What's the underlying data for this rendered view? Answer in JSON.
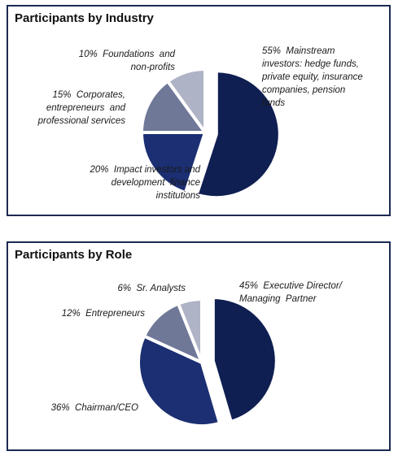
{
  "chart_data": [
    {
      "type": "pie",
      "title": "Participants by Industry",
      "categories": [
        "Mainstream investors: hedge funds, private equity, insurance companies, pension funds",
        "Impact investors and development finance institutions",
        "Corporates, entrepreneurs and professional services",
        "Foundations and non-profits"
      ],
      "values": [
        55,
        20,
        15,
        10
      ],
      "labels": [
        [
          "55%  Mainstream",
          "investors: hedge funds,",
          "private equity, insurance",
          "companies, pension",
          "funds"
        ],
        [
          "20%  Impact investors and",
          "development  finance",
          "institutions"
        ],
        [
          "15%  Corporates,",
          "entrepreneurs  and",
          "professional services"
        ],
        [
          "10%  Foundations  and",
          "non-profits"
        ]
      ],
      "colors": [
        "#0f1f52",
        "#1b2f72",
        "#6f7897",
        "#aeb3c5"
      ],
      "exploded_index": 0,
      "legend": "none"
    },
    {
      "type": "pie",
      "title": "Participants by Role",
      "categories": [
        "Executive Director/ Managing Partner",
        "Chairman/CEO",
        "Entrepreneurs",
        "Sr. Analysts"
      ],
      "values": [
        45,
        36,
        12,
        6
      ],
      "labels": [
        [
          "45%  Executive Director/",
          "Managing  Partner"
        ],
        [
          "36%  Chairman/CEO"
        ],
        [
          "12%  Entrepreneurs"
        ],
        [
          "6%  Sr. Analysts"
        ]
      ],
      "colors": [
        "#0f1f52",
        "#1b2f72",
        "#6f7897",
        "#aeb3c5"
      ],
      "exploded_index": 0,
      "legend": "none"
    }
  ]
}
